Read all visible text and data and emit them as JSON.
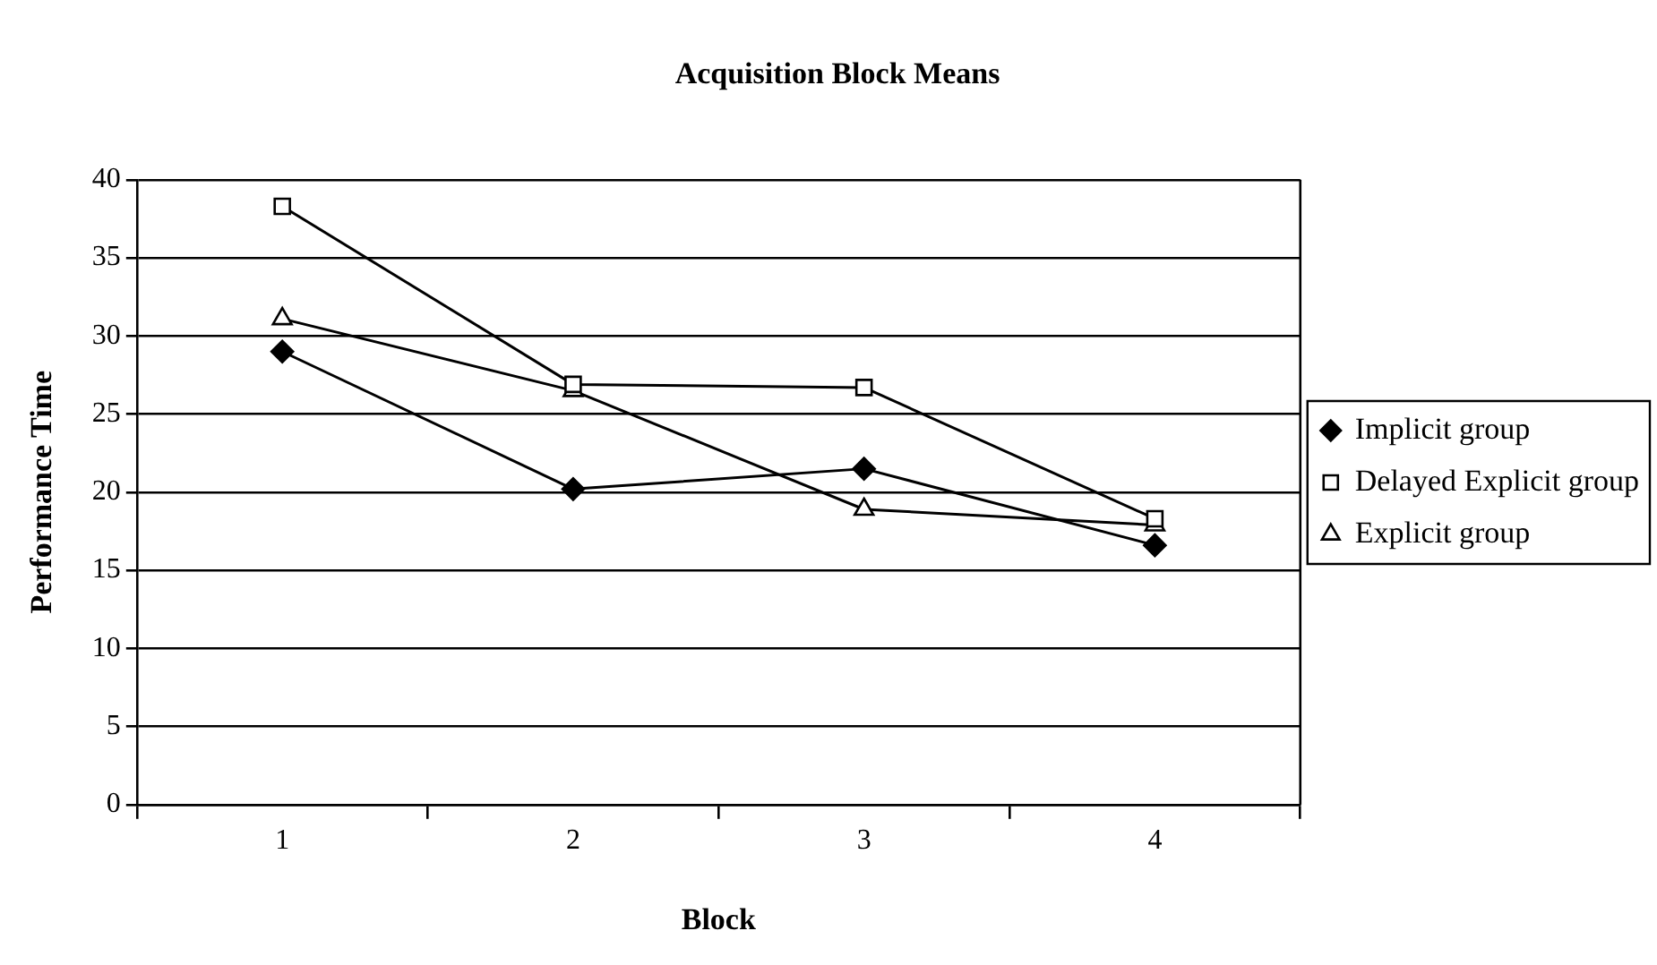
{
  "chart_data": {
    "type": "line",
    "title": "Acquisition Block Means",
    "xlabel": "Block",
    "ylabel": "Performance Time",
    "categories": [
      "1",
      "2",
      "3",
      "4"
    ],
    "series": [
      {
        "name": "Implicit group",
        "color": "#000000",
        "marker": "diamond",
        "values": [
          29.0,
          20.2,
          21.5,
          16.6
        ]
      },
      {
        "name": "Delayed Explicit group",
        "color": "#000000",
        "marker": "square",
        "values": [
          38.3,
          26.9,
          26.7,
          18.3
        ]
      },
      {
        "name": "Explicit group",
        "color": "#000000",
        "marker": "triangle",
        "values": [
          31.1,
          26.5,
          18.9,
          17.9
        ]
      }
    ],
    "ylim": [
      0,
      40
    ],
    "yticks": [
      0,
      5,
      10,
      15,
      20,
      25,
      30,
      35,
      40
    ],
    "grid": "y",
    "legend": "right",
    "line_style": "solid"
  }
}
